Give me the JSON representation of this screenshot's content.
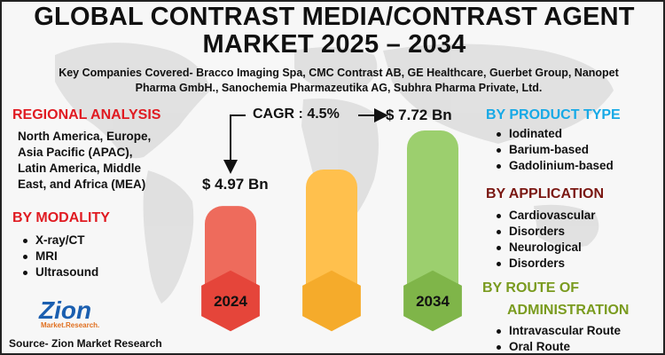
{
  "title_line1": "GLOBAL CONTRAST MEDIA/CONTRAST AGENT",
  "title_line2": "MARKET 2025 – 2034",
  "companies_line1": "Key Companies Covered- Bracco Imaging Spa, CMC Contrast AB, GE Healthcare, Guerbet Group, Nanopet",
  "companies_line2": "Pharma GmbH., Sanochemia Pharmazeutika AG, Subhra Pharma Private, Ltd.",
  "regional": {
    "heading": "REGIONAL ANALYSIS",
    "lines": [
      "North America, Europe,",
      "Asia Pacific (APAC),",
      "Latin America, Middle",
      "East, and Africa (MEA)"
    ]
  },
  "modality": {
    "heading": "BY MODALITY",
    "items": [
      "X-ray/CT",
      "MRI",
      "Ultrasound"
    ]
  },
  "product_type": {
    "heading": "BY PRODUCT TYPE",
    "items": [
      "Iodinated",
      "Barium-based",
      "Gadolinium-based"
    ]
  },
  "application": {
    "heading": "BY APPLICATION",
    "items": [
      "Cardiovascular",
      "Disorders",
      "Neurological",
      "Disorders"
    ]
  },
  "route": {
    "heading_line1": "BY ROUTE OF",
    "heading_line2": "ADMINISTRATION",
    "items": [
      "Intravascular Route",
      "Oral Route"
    ]
  },
  "market": {
    "cagr_label": "CAGR : 4.5%",
    "start_value": "$ 4.97 Bn",
    "end_value": "$ 7.72 Bn",
    "start_year": "2024",
    "end_year": "2034"
  },
  "chart_data": {
    "type": "bar",
    "categories": [
      "2024",
      "",
      "2034"
    ],
    "values": [
      4.97,
      6.3,
      7.72
    ],
    "unit": "USD Bn"
  },
  "colors": {
    "bar_2024": "#ee6b5c",
    "bar_mid": "#ffc04d",
    "bar_2034": "#9ccf6e",
    "hex_2024": "#e5453a",
    "hex_mid": "#f5ab2b",
    "hex_2034": "#7fb549"
  },
  "logo": {
    "brand": "Zion",
    "tagline": "Market.Research."
  },
  "source": "Source- Zion Market Research"
}
